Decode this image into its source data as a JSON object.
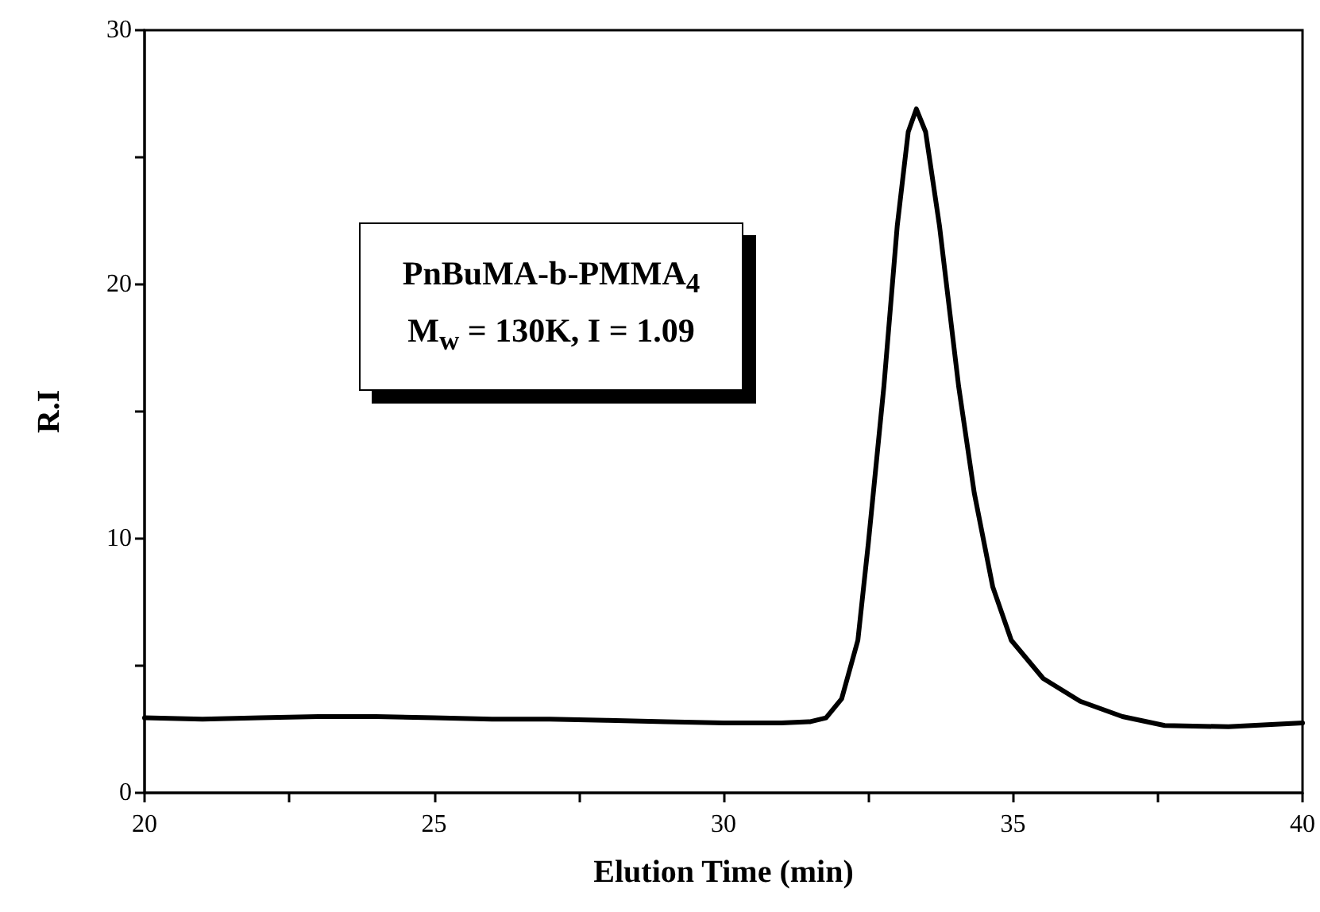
{
  "chart_data": {
    "type": "line",
    "xlabel": "Elution Time (min)",
    "ylabel": "R.I",
    "annotations": [
      "PnBuMA-b-PMMA$_{4}$",
      "M$_{w}$ = 130K, I = 1.09"
    ],
    "x": [
      20,
      21,
      22,
      23,
      24,
      25,
      26,
      27,
      28,
      29,
      30,
      31,
      31.5,
      31.77,
      32.04,
      32.32,
      32.5,
      32.77,
      33.0,
      33.19,
      33.33,
      33.49,
      33.73,
      34.06,
      34.33,
      34.65,
      34.97,
      35.52,
      36.16,
      36.89,
      37.62,
      38.72,
      40
    ],
    "series": [
      {
        "color": "#000000",
        "values": [
          2.95,
          2.9,
          2.95,
          3.0,
          3.0,
          2.95,
          2.9,
          2.9,
          2.85,
          2.8,
          2.75,
          2.75,
          2.8,
          2.95,
          3.7,
          6.0,
          9.8,
          16.0,
          22.3,
          26.0,
          26.9,
          26.0,
          22.3,
          16.0,
          11.8,
          8.1,
          6.0,
          4.5,
          3.6,
          3.0,
          2.65,
          2.6,
          2.75
        ]
      }
    ],
    "xlim": [
      20,
      40
    ],
    "ylim": [
      0,
      30
    ],
    "xticks": [
      20,
      {
        "value": 22.5,
        "label": null
      },
      25,
      {
        "value": 27.5,
        "label": null
      },
      30,
      {
        "value": 32.5,
        "label": null
      },
      35,
      {
        "value": 37.5,
        "label": null
      },
      40
    ],
    "yticks": [
      0,
      {
        "value": 5,
        "label": null
      },
      10,
      {
        "value": 15,
        "label": null
      },
      20,
      {
        "value": 25,
        "label": null
      },
      30
    ],
    "grid": false,
    "marker": "none",
    "line_style": "solid"
  }
}
